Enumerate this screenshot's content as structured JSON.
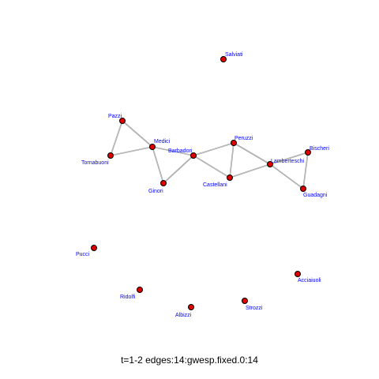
{
  "caption": "t=1-2 edges:14:gwesp.fixed.0:14",
  "node_fill": "#e00000",
  "node_stroke": "#000000",
  "label_color": "#0000ff",
  "edge_color": "#9a9a9a",
  "nodes": [
    {
      "id": "salviati",
      "label": "Salviati"
    },
    {
      "id": "pazzi",
      "label": "Pazzi"
    },
    {
      "id": "medici",
      "label": "Medici"
    },
    {
      "id": "tornabuoni",
      "label": "Tornabuoni"
    },
    {
      "id": "barbadori",
      "label": "Barbadori"
    },
    {
      "id": "ginori",
      "label": "Ginori"
    },
    {
      "id": "peruzzi",
      "label": "Peruzzi"
    },
    {
      "id": "castellani",
      "label": "Castellani"
    },
    {
      "id": "lamberteschi",
      "label": "Lamberteschi"
    },
    {
      "id": "bischeri",
      "label": "Bischeri"
    },
    {
      "id": "guadagni",
      "label": "Guadagni"
    },
    {
      "id": "pucci",
      "label": "Pucci"
    },
    {
      "id": "acciaiuoli",
      "label": "Acciaiuoli"
    },
    {
      "id": "ridolfi",
      "label": "Ridolfi"
    },
    {
      "id": "strozzi",
      "label": "Strozzi"
    },
    {
      "id": "albizzi",
      "label": "Albizzi"
    }
  ],
  "edges": [
    [
      "pazzi",
      "tornabuoni"
    ],
    [
      "pazzi",
      "medici"
    ],
    [
      "tornabuoni",
      "medici"
    ],
    [
      "medici",
      "ginori"
    ],
    [
      "medici",
      "barbadori"
    ],
    [
      "ginori",
      "barbadori"
    ],
    [
      "barbadori",
      "peruzzi"
    ],
    [
      "barbadori",
      "castellani"
    ],
    [
      "peruzzi",
      "castellani"
    ],
    [
      "peruzzi",
      "lamberteschi"
    ],
    [
      "castellani",
      "lamberteschi"
    ],
    [
      "lamberteschi",
      "bischeri"
    ],
    [
      "lamberteschi",
      "guadagni"
    ],
    [
      "bischeri",
      "guadagni"
    ]
  ]
}
